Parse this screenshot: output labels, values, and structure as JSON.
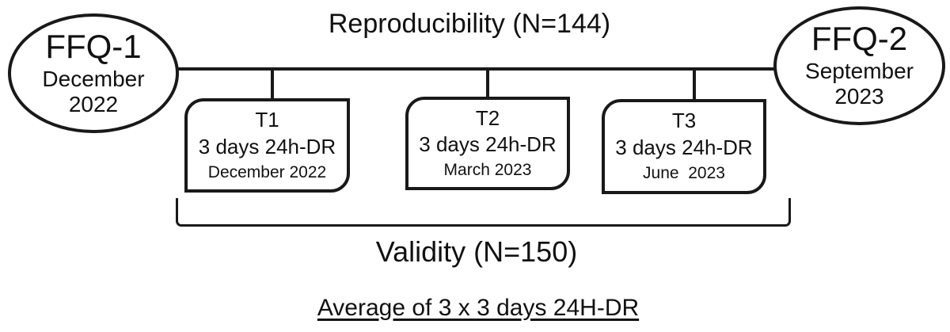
{
  "diagram": {
    "title": "Reproducibility (N=144)",
    "validity_label": "Validity (N=150)",
    "average_label": "Average of 3 x 3 days 24H-DR",
    "ffq1": {
      "label": "FFQ-1",
      "date_line1": "December",
      "date_line2": "2022"
    },
    "ffq2": {
      "label": "FFQ-2",
      "date_line1": "September",
      "date_line2": "2023"
    },
    "timepoints": [
      {
        "label": "T1",
        "detail": "3 days 24h-DR",
        "date": "December 2022"
      },
      {
        "label": "T2",
        "detail": "3 days 24h-DR",
        "date": "March 2023"
      },
      {
        "label": "T3",
        "detail": "3 days 24h-DR",
        "date": "June  2023"
      }
    ],
    "colors": {
      "stroke": "#191919",
      "background": "#ffffff",
      "text": "#111111"
    }
  }
}
